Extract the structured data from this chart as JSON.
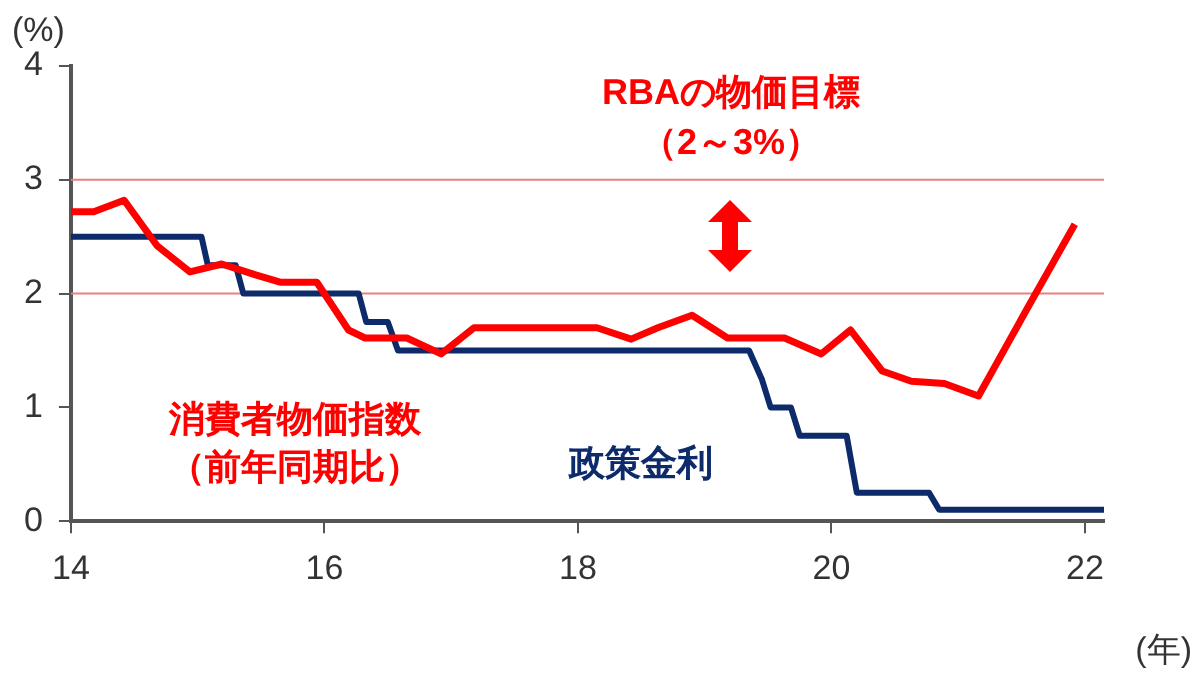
{
  "chart_data": {
    "type": "line",
    "xlabel": "(年)",
    "ylabel": "(%)",
    "xlim": [
      14,
      22.15
    ],
    "xticks": [
      14,
      16,
      18,
      20,
      22
    ],
    "ylim": [
      0,
      4
    ],
    "yticks": [
      0,
      1,
      2,
      3,
      4
    ],
    "grid": false,
    "legend": false,
    "marker": "none",
    "line_style": "solid",
    "series": [
      {
        "name": "消費者物価指数（前年同期比）",
        "color": "#ff0000",
        "x": [
          14.0,
          14.18,
          14.42,
          14.68,
          14.94,
          15.19,
          15.47,
          15.65,
          15.94,
          16.19,
          16.32,
          16.65,
          16.92,
          17.18,
          18.15,
          18.42,
          18.63,
          18.9,
          19.18,
          19.63,
          19.92,
          20.15,
          20.4,
          20.63,
          20.89,
          21.16,
          21.53,
          21.92
        ],
        "values": [
          2.72,
          2.72,
          2.82,
          2.42,
          2.19,
          2.26,
          2.16,
          2.1,
          2.1,
          1.68,
          1.61,
          1.61,
          1.47,
          1.7,
          1.7,
          1.6,
          1.7,
          1.81,
          1.61,
          1.61,
          1.47,
          1.68,
          1.32,
          1.23,
          1.21,
          1.1,
          1.84,
          2.61
        ]
      },
      {
        "name": "政策金利",
        "color": "#0d2a6b",
        "x": [
          14,
          15.03,
          15.08,
          15.3,
          15.36,
          16.27,
          16.33,
          16.5,
          16.58,
          19.35,
          19.45,
          19.52,
          19.68,
          19.75,
          20.12,
          20.2,
          20.77,
          20.85,
          22.15
        ],
        "values": [
          2.5,
          2.5,
          2.25,
          2.25,
          2.0,
          2.0,
          1.75,
          1.75,
          1.5,
          1.5,
          1.25,
          1.0,
          1.0,
          0.75,
          0.75,
          0.25,
          0.25,
          0.1,
          0.1
        ]
      }
    ],
    "ref_lines": [
      {
        "axis": "y",
        "value": 2,
        "color": "#e88080"
      },
      {
        "axis": "y",
        "value": 3,
        "color": "#e88080"
      }
    ],
    "annotations": [
      "RBAの物価目標（2～3%）"
    ]
  }
}
